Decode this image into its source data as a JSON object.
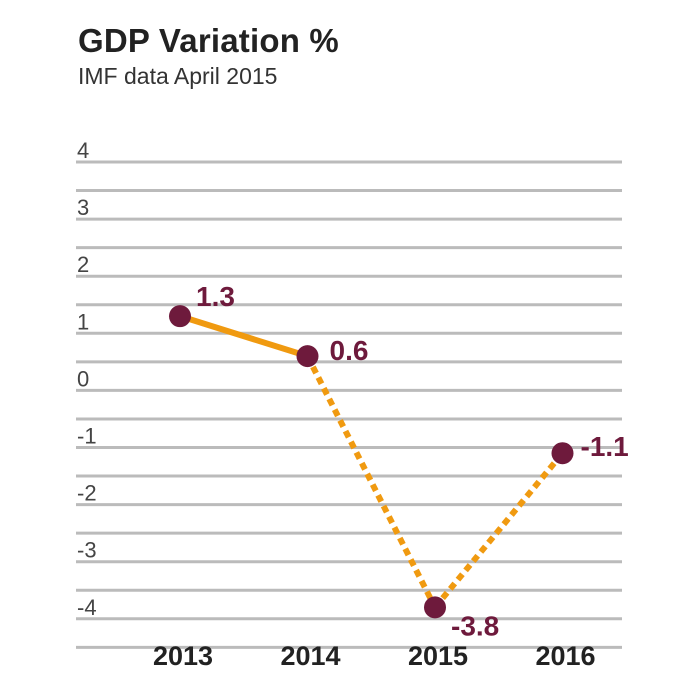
{
  "chart_data": {
    "type": "line",
    "title": "GDP Variation %",
    "subtitle": "IMF data April 2015",
    "xlabel": "",
    "ylabel": "",
    "categories": [
      "2013",
      "2014",
      "2015",
      "2016"
    ],
    "series": [
      {
        "values": [
          1.3,
          0.6,
          -3.8,
          -1.1
        ],
        "value_labels": [
          "1.3",
          "0.6",
          "-3.8",
          "-1.1"
        ],
        "solid_through_index": 1,
        "note": "segments after 2014 are dashed (forecast)"
      }
    ],
    "ylim": [
      -4.5,
      4
    ],
    "yticks": [
      "4",
      "3",
      "2",
      "1",
      "0",
      "-1",
      "-2",
      "-3",
      "-4"
    ],
    "grid": true,
    "legend": "none",
    "colors": {
      "line": "#F09A10",
      "marker": "#6E1A3C",
      "label": "#6E1A3C",
      "grid": "#BBBBBB"
    }
  }
}
